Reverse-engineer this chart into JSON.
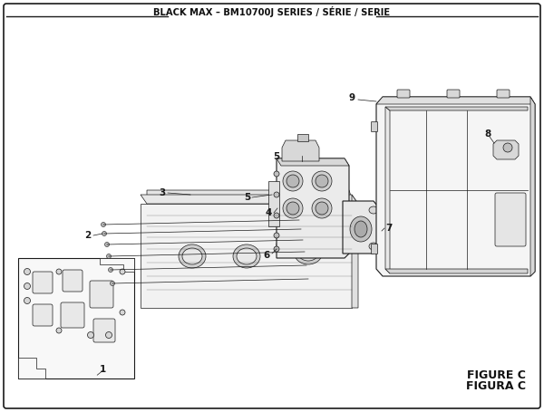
{
  "title": "BLACK MAX – BM10700J SERIES / SÉRIE / SERIE",
  "figure_label": "FIGURE C",
  "figure_label2": "FIGURA C",
  "bg_color": "#ffffff",
  "border_color": "#1a1a1a",
  "line_color": "#1a1a1a",
  "fill_light": "#f0f0f0",
  "fill_mid": "#e0e0e0",
  "fill_dark": "#c8c8c8"
}
